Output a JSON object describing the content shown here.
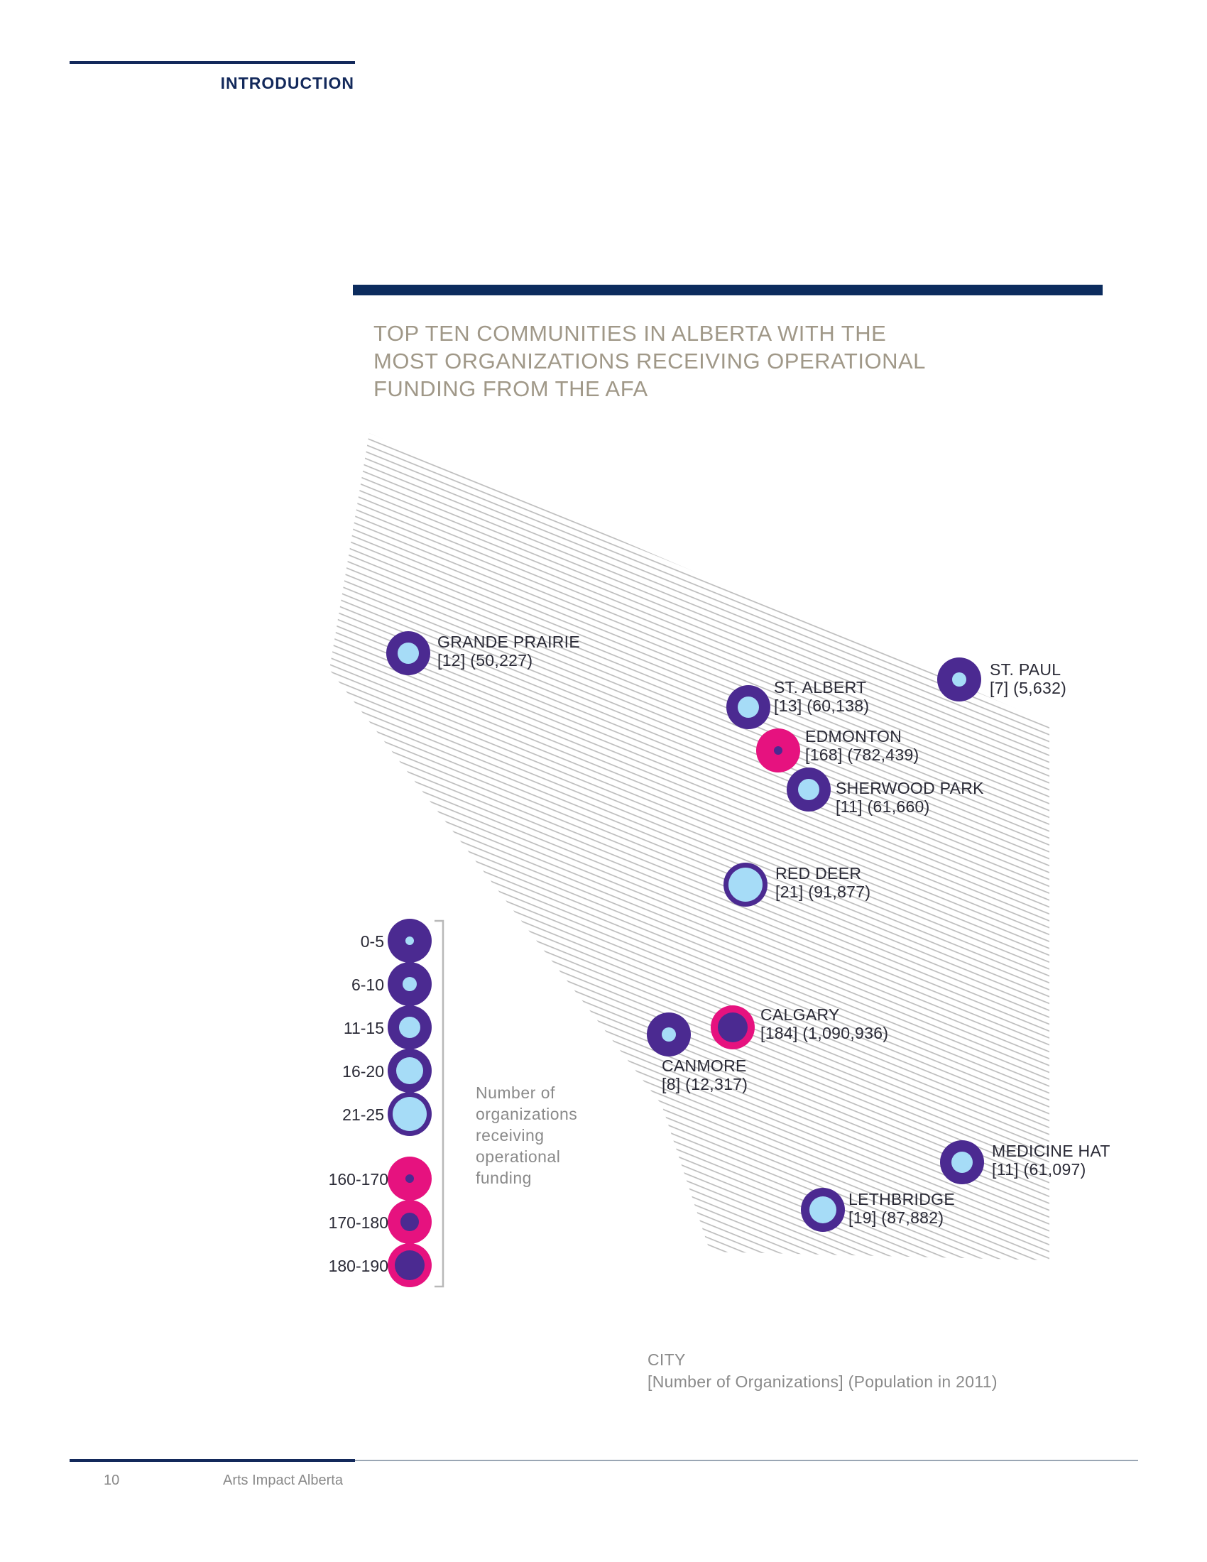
{
  "header": {
    "section": "INTRODUCTION"
  },
  "figure": {
    "title_lines": [
      "TOP TEN COMMUNITIES IN ALBERTA WITH THE",
      "MOST ORGANIZATIONS RECEIVING OPERATIONAL",
      "FUNDING FROM THE AFA"
    ]
  },
  "colors": {
    "purple": "#4b2a91",
    "light_blue": "#a6dcf7",
    "magenta": "#e6127f",
    "navy": "#13295b",
    "map_hatch": "#bdbdbd"
  },
  "cities": [
    {
      "name": "GRANDE PRAIRIE",
      "detail": "[12] (50,227)",
      "organizations": 12,
      "population": 50227
    },
    {
      "name": "ST. PAUL",
      "detail": "[7] (5,632)",
      "organizations": 7,
      "population": 5632
    },
    {
      "name": "ST. ALBERT",
      "detail": "[13] (60,138)",
      "organizations": 13,
      "population": 60138
    },
    {
      "name": "EDMONTON",
      "detail": "[168] (782,439)",
      "organizations": 168,
      "population": 782439
    },
    {
      "name": "SHERWOOD PARK",
      "detail": "[11] (61,660)",
      "organizations": 11,
      "population": 61660
    },
    {
      "name": "RED DEER",
      "detail": "[21] (91,877)",
      "organizations": 21,
      "population": 91877
    },
    {
      "name": "CALGARY",
      "detail": "[184] (1,090,936)",
      "organizations": 184,
      "population": 1090936
    },
    {
      "name": "CANMORE",
      "detail": "[8] (12,317)",
      "organizations": 8,
      "population": 12317
    },
    {
      "name": "MEDICINE HAT",
      "detail": "[11] (61,097)",
      "organizations": 11,
      "population": 61097
    },
    {
      "name": "LETHBRIDGE",
      "detail": "[19] (87,882)",
      "organizations": 19,
      "population": 87882
    }
  ],
  "legend": {
    "ranges": [
      "0-5",
      "6-10",
      "11-15",
      "16-20",
      "21-25",
      "160-170",
      "170-180",
      "180-190"
    ],
    "caption_lines": [
      "Number of",
      "organizations",
      "receiving",
      "operational",
      "funding"
    ]
  },
  "key": {
    "line1": "CITY",
    "line2": "[Number of Organizations] (Population in 2011)"
  },
  "footer": {
    "page_number": "10",
    "publication": "Arts Impact Alberta"
  }
}
